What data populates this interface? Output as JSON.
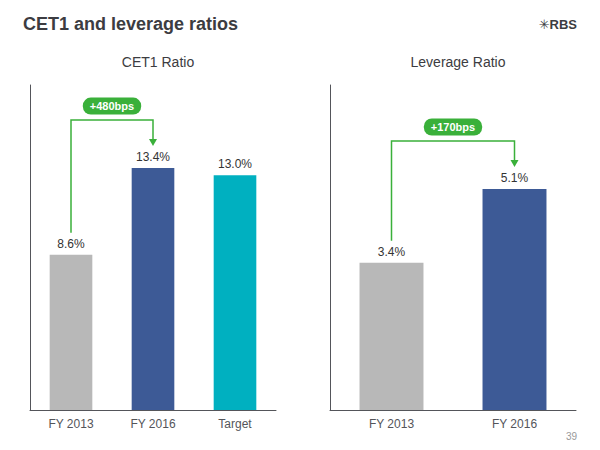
{
  "title": "CET1 and leverage ratios",
  "annotations": [
    "✳RBS",
    "39"
  ],
  "chart_data": [
    {
      "type": "bar",
      "title": "CET1 Ratio",
      "categories": [
        "FY 2013",
        "FY 2016",
        "Target"
      ],
      "values": [
        8.6,
        13.4,
        13.0
      ],
      "value_labels": [
        "8.6%",
        "13.4%",
        "13.0%"
      ],
      "colors": [
        "#b8b8b8",
        "#3d5a96",
        "#00b0c0"
      ],
      "data_labels": true,
      "ylim": [
        0,
        18
      ],
      "tick_labels": "x",
      "grid": false,
      "annotations": [
        {
          "text": "+480bps",
          "from": "FY 2013",
          "to": "FY 2016",
          "color": "#3ab03a"
        }
      ]
    },
    {
      "type": "bar",
      "title": "Leverage Ratio",
      "categories": [
        "FY 2013",
        "FY 2016"
      ],
      "values": [
        3.4,
        5.1
      ],
      "value_labels": [
        "3.4%",
        "5.1%"
      ],
      "colors": [
        "#b8b8b8",
        "#3d5a96"
      ],
      "data_labels": true,
      "ylim": [
        0,
        7.5
      ],
      "tick_labels": "x",
      "grid": false,
      "annotations": [
        {
          "text": "+170bps",
          "from": "FY 2013",
          "to": "FY 2016",
          "color": "#3ab03a"
        }
      ]
    }
  ]
}
